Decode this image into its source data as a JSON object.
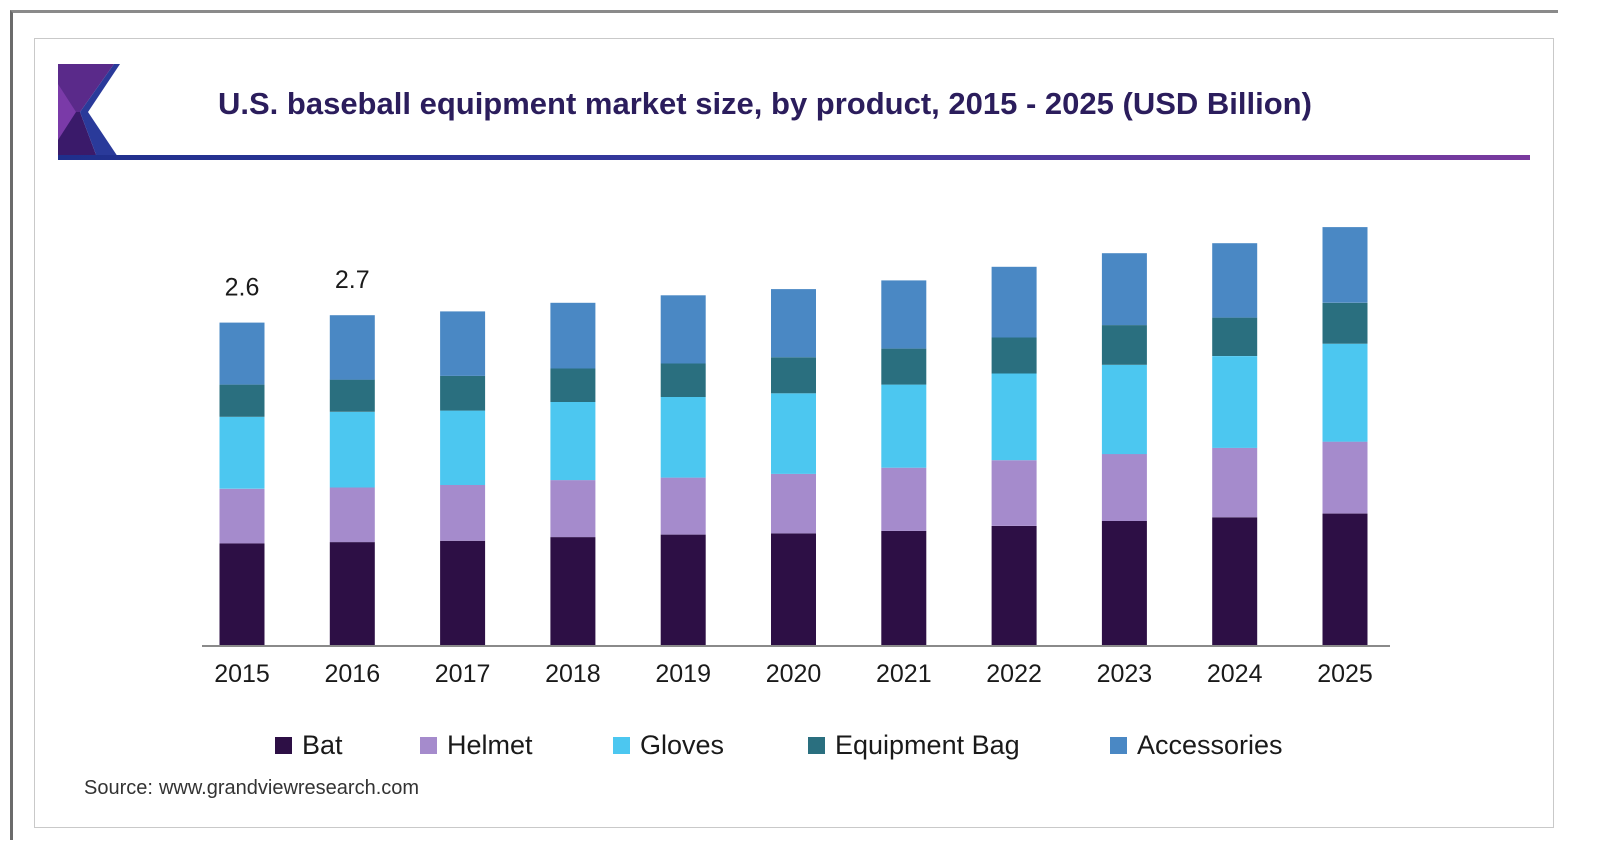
{
  "header": {
    "title": "U.S. baseball equipment market size, by product, 2015 - 2025 (USD Billion)"
  },
  "source": {
    "label": "Source:",
    "url": "www.grandviewresearch.com"
  },
  "colors": {
    "Bat": "#2d0f45",
    "Helmet": "#a58bcc",
    "Gloves": "#4cc7f0",
    "Equipment Bag": "#2a6f7f",
    "Accessories": "#4a88c4"
  },
  "chart_data": {
    "type": "bar",
    "stacked": true,
    "title": "U.S. baseball equipment market size, by product, 2015 - 2025 (USD Billion)",
    "xlabel": "",
    "ylabel": "",
    "ylim": [
      0,
      3.4
    ],
    "grid": false,
    "legend_position": "bottom",
    "categories": [
      "2015",
      "2016",
      "2017",
      "2018",
      "2019",
      "2020",
      "2021",
      "2022",
      "2023",
      "2024",
      "2025"
    ],
    "series": [
      {
        "name": "Bat",
        "values": [
          0.82,
          0.83,
          0.84,
          0.87,
          0.89,
          0.9,
          0.92,
          0.96,
          1.0,
          1.03,
          1.06
        ]
      },
      {
        "name": "Helmet",
        "values": [
          0.44,
          0.44,
          0.45,
          0.46,
          0.46,
          0.48,
          0.51,
          0.53,
          0.54,
          0.56,
          0.58
        ]
      },
      {
        "name": "Gloves",
        "values": [
          0.58,
          0.61,
          0.6,
          0.63,
          0.65,
          0.65,
          0.67,
          0.7,
          0.72,
          0.74,
          0.79
        ]
      },
      {
        "name": "Equipment Bag",
        "values": [
          0.26,
          0.26,
          0.28,
          0.27,
          0.27,
          0.29,
          0.29,
          0.29,
          0.32,
          0.31,
          0.33
        ]
      },
      {
        "name": "Accessories",
        "values": [
          0.5,
          0.52,
          0.52,
          0.53,
          0.55,
          0.55,
          0.55,
          0.57,
          0.58,
          0.6,
          0.61
        ]
      }
    ],
    "totals": [
      2.6,
      2.7,
      2.7,
      2.8,
      2.8,
      2.9,
      2.9,
      3.1,
      3.2,
      3.2,
      3.4
    ],
    "data_labels": [
      "2.6",
      "2.7",
      "",
      "",
      "",
      "",
      "",
      "",
      "",
      "",
      ""
    ]
  }
}
